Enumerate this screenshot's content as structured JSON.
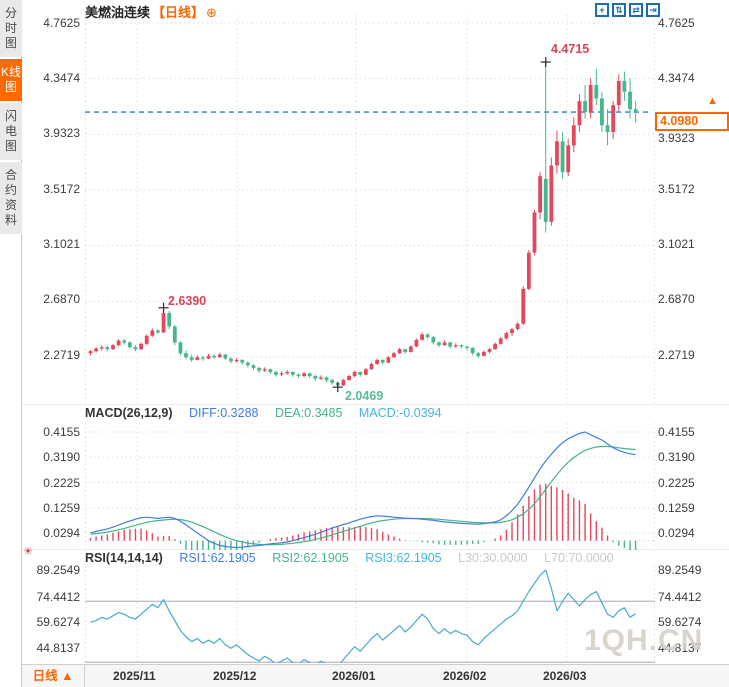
{
  "header": {
    "instrument": "美燃油连续",
    "period": "【日线】",
    "add_icon_glyph": "⊕"
  },
  "toolbar": {
    "icons": [
      {
        "name": "crosshair",
        "glyph": "+"
      },
      {
        "name": "zoom-in",
        "glyph": "⇅"
      },
      {
        "name": "zoom-out",
        "glyph": "⇄"
      },
      {
        "name": "goto-latest",
        "glyph": "⇥"
      }
    ]
  },
  "sidebar": {
    "items": [
      {
        "label": "分时图",
        "active": false
      },
      {
        "label": "K线图",
        "active": true
      },
      {
        "label": "闪电图",
        "active": false
      },
      {
        "label": "合约资料",
        "active": false
      }
    ]
  },
  "misc": {
    "sun_glyph": "☀"
  },
  "main_chart": {
    "y_axis": [
      "4.7625",
      "4.3474",
      "3.9323",
      "3.5172",
      "3.1021",
      "2.6870",
      "2.2719"
    ],
    "annotations": {
      "high_label": "4.4715",
      "swing_high_label": "2.6390",
      "swing_low_label": "2.0469",
      "last_price": "4.0980"
    },
    "price_arrow_glyph": "▲"
  },
  "macd": {
    "header": {
      "label": "MACD(26,12,9)",
      "diff": "DIFF:0.3288",
      "dea": "DEA:0.3485",
      "macd": "MACD:-0.0394"
    },
    "y_axis": [
      "0.4155",
      "0.3190",
      "0.2225",
      "0.1259",
      "0.0294"
    ]
  },
  "rsi": {
    "header": {
      "label": "RSI(14,14,14)",
      "rsi1": "RSI1:62.1905",
      "rsi2": "RSI2:62.1905",
      "rsi3": "RSI3:62.1905",
      "l30": "L30:30.0000",
      "l70": "L70:70.0000"
    },
    "y_axis": [
      "89.2549",
      "74.4412",
      "59.6274",
      "44.8137"
    ]
  },
  "bottom_bar": {
    "period": "日线",
    "period_arrow": "▲",
    "months": [
      "2025/11",
      "2025/12",
      "2026/01",
      "2026/02",
      "2026/03"
    ]
  },
  "watermark": {
    "text": "1QH.CN"
  },
  "colors": {
    "up": "#e4485c",
    "down": "#45b78a",
    "accent_orange": "#ff6600",
    "diff_blue": "#3f7de0",
    "dea_green": "#46b388",
    "macd_cyan": "#45b4e2",
    "rsi_cyan": "#46aacd",
    "dashed_blue": "#1f7fd6",
    "grid": "#dedede",
    "level_gray": "#a8a8b0",
    "marker": "#2a2a2a"
  },
  "chart_data": [
    {
      "type": "candlestick",
      "title": "美燃油连续 日线",
      "x_axis_months": [
        "2025/11",
        "2025/12",
        "2026/01",
        "2026/02",
        "2026/03"
      ],
      "y_axis_ticks": [
        4.7625,
        4.3474,
        3.9323,
        3.5172,
        3.1021,
        2.687,
        2.2719
      ],
      "last_price": 4.098,
      "period_high": 4.4715,
      "swing_high": 2.639,
      "swing_low": 2.0469,
      "markers": [
        {
          "index": 13,
          "price": 2.639,
          "label": "2.6390"
        },
        {
          "index": 44,
          "price": 2.0469,
          "label": "2.0469"
        },
        {
          "index": 81,
          "price": 4.4715,
          "label": "4.4715"
        }
      ],
      "ohlc": [
        [
          2.3,
          2.325,
          2.285,
          2.315
        ],
        [
          2.315,
          2.345,
          2.305,
          2.335
        ],
        [
          2.335,
          2.36,
          2.32,
          2.345
        ],
        [
          2.345,
          2.355,
          2.315,
          2.33
        ],
        [
          2.33,
          2.37,
          2.325,
          2.36
        ],
        [
          2.36,
          2.405,
          2.35,
          2.395
        ],
        [
          2.395,
          2.405,
          2.365,
          2.38
        ],
        [
          2.38,
          2.39,
          2.335,
          2.345
        ],
        [
          2.345,
          2.36,
          2.315,
          2.33
        ],
        [
          2.33,
          2.38,
          2.325,
          2.37
        ],
        [
          2.37,
          2.44,
          2.36,
          2.43
        ],
        [
          2.43,
          2.485,
          2.42,
          2.47
        ],
        [
          2.47,
          2.48,
          2.44,
          2.455
        ],
        [
          2.455,
          2.639,
          2.45,
          2.6
        ],
        [
          2.6,
          2.615,
          2.48,
          2.5
        ],
        [
          2.5,
          2.51,
          2.36,
          2.38
        ],
        [
          2.38,
          2.39,
          2.285,
          2.3
        ],
        [
          2.3,
          2.32,
          2.255,
          2.27
        ],
        [
          2.27,
          2.29,
          2.235,
          2.25
        ],
        [
          2.25,
          2.285,
          2.245,
          2.27
        ],
        [
          2.27,
          2.28,
          2.245,
          2.26
        ],
        [
          2.26,
          2.295,
          2.255,
          2.28
        ],
        [
          2.28,
          2.29,
          2.255,
          2.27
        ],
        [
          2.27,
          2.305,
          2.265,
          2.29
        ],
        [
          2.29,
          2.295,
          2.25,
          2.26
        ],
        [
          2.26,
          2.27,
          2.225,
          2.24
        ],
        [
          2.24,
          2.265,
          2.23,
          2.25
        ],
        [
          2.25,
          2.255,
          2.215,
          2.23
        ],
        [
          2.23,
          2.24,
          2.195,
          2.21
        ],
        [
          2.21,
          2.22,
          2.175,
          2.19
        ],
        [
          2.19,
          2.2,
          2.155,
          2.17
        ],
        [
          2.17,
          2.195,
          2.16,
          2.18
        ],
        [
          2.18,
          2.185,
          2.145,
          2.16
        ],
        [
          2.16,
          2.17,
          2.125,
          2.14
        ],
        [
          2.14,
          2.165,
          2.13,
          2.15
        ],
        [
          2.15,
          2.175,
          2.14,
          2.16
        ],
        [
          2.16,
          2.165,
          2.125,
          2.14
        ],
        [
          2.14,
          2.15,
          2.115,
          2.13
        ],
        [
          2.13,
          2.16,
          2.12,
          2.15
        ],
        [
          2.15,
          2.155,
          2.115,
          2.13
        ],
        [
          2.13,
          2.14,
          2.095,
          2.11
        ],
        [
          2.11,
          2.135,
          2.1,
          2.12
        ],
        [
          2.12,
          2.125,
          2.085,
          2.1
        ],
        [
          2.1,
          2.11,
          2.065,
          2.08
        ],
        [
          2.08,
          2.09,
          2.0469,
          2.06
        ],
        [
          2.06,
          2.11,
          2.055,
          2.1
        ],
        [
          2.1,
          2.14,
          2.095,
          2.13
        ],
        [
          2.13,
          2.17,
          2.12,
          2.16
        ],
        [
          2.16,
          2.165,
          2.125,
          2.14
        ],
        [
          2.14,
          2.19,
          2.135,
          2.18
        ],
        [
          2.18,
          2.23,
          2.175,
          2.22
        ],
        [
          2.22,
          2.26,
          2.215,
          2.25
        ],
        [
          2.25,
          2.255,
          2.215,
          2.23
        ],
        [
          2.23,
          2.28,
          2.225,
          2.27
        ],
        [
          2.27,
          2.31,
          2.265,
          2.3
        ],
        [
          2.3,
          2.34,
          2.295,
          2.33
        ],
        [
          2.33,
          2.335,
          2.295,
          2.31
        ],
        [
          2.31,
          2.36,
          2.305,
          2.35
        ],
        [
          2.35,
          2.41,
          2.345,
          2.4
        ],
        [
          2.4,
          2.455,
          2.395,
          2.44
        ],
        [
          2.44,
          2.45,
          2.405,
          2.42
        ],
        [
          2.42,
          2.43,
          2.365,
          2.38
        ],
        [
          2.38,
          2.39,
          2.345,
          2.36
        ],
        [
          2.36,
          2.395,
          2.355,
          2.38
        ],
        [
          2.38,
          2.385,
          2.335,
          2.35
        ],
        [
          2.35,
          2.375,
          2.34,
          2.36
        ],
        [
          2.36,
          2.365,
          2.335,
          2.35
        ],
        [
          2.35,
          2.355,
          2.32,
          2.34
        ],
        [
          2.34,
          2.345,
          2.285,
          2.3
        ],
        [
          2.3,
          2.31,
          2.265,
          2.28
        ],
        [
          2.28,
          2.32,
          2.275,
          2.31
        ],
        [
          2.31,
          2.34,
          2.3,
          2.33
        ],
        [
          2.33,
          2.38,
          2.325,
          2.37
        ],
        [
          2.37,
          2.42,
          2.365,
          2.41
        ],
        [
          2.41,
          2.46,
          2.4,
          2.45
        ],
        [
          2.45,
          2.49,
          2.43,
          2.48
        ],
        [
          2.48,
          2.53,
          2.47,
          2.52
        ],
        [
          2.52,
          2.8,
          2.51,
          2.78
        ],
        [
          2.78,
          3.07,
          2.77,
          3.05
        ],
        [
          3.05,
          3.37,
          3.03,
          3.35
        ],
        [
          3.35,
          3.65,
          3.3,
          3.62
        ],
        [
          3.6,
          4.4715,
          3.2,
          3.28
        ],
        [
          3.28,
          3.76,
          3.25,
          3.7
        ],
        [
          3.7,
          3.96,
          3.64,
          3.88
        ],
        [
          3.88,
          3.95,
          3.6,
          3.65
        ],
        [
          3.65,
          3.9,
          3.62,
          3.85
        ],
        [
          3.85,
          4.06,
          3.8,
          4.0
        ],
        [
          4.0,
          4.23,
          3.95,
          4.18
        ],
        [
          4.18,
          4.3,
          4.05,
          4.1
        ],
        [
          4.1,
          4.35,
          4.05,
          4.3
        ],
        [
          4.3,
          4.42,
          4.15,
          4.2
        ],
        [
          4.2,
          4.25,
          3.95,
          4.0
        ],
        [
          4.0,
          4.12,
          3.85,
          3.95
        ],
        [
          3.95,
          4.18,
          3.9,
          4.15
        ],
        [
          4.15,
          4.38,
          4.1,
          4.33
        ],
        [
          4.33,
          4.4,
          4.18,
          4.25
        ],
        [
          4.25,
          4.35,
          4.05,
          4.12
        ],
        [
          4.12,
          4.18,
          4.02,
          4.098
        ]
      ]
    },
    {
      "type": "line+bar",
      "title": "MACD(26,12,9)",
      "diff_last": 0.3288,
      "dea_last": 0.3485,
      "macd_last": -0.0394,
      "y_axis_ticks": [
        0.4155,
        0.319,
        0.2225,
        0.1259,
        0.0294
      ],
      "diff": [
        0.03,
        0.035,
        0.04,
        0.045,
        0.052,
        0.06,
        0.068,
        0.075,
        0.082,
        0.088,
        0.09,
        0.088,
        0.085,
        0.088,
        0.09,
        0.085,
        0.075,
        0.06,
        0.045,
        0.03,
        0.015,
        0.0,
        -0.01,
        -0.018,
        -0.022,
        -0.025,
        -0.026,
        -0.025,
        -0.022,
        -0.02,
        -0.018,
        -0.015,
        -0.012,
        -0.01,
        -0.008,
        -0.005,
        0.0,
        0.006,
        0.012,
        0.018,
        0.025,
        0.032,
        0.04,
        0.048,
        0.055,
        0.062,
        0.068,
        0.075,
        0.082,
        0.088,
        0.092,
        0.095,
        0.094,
        0.092,
        0.09,
        0.088,
        0.086,
        0.085,
        0.084,
        0.082,
        0.08,
        0.078,
        0.075,
        0.072,
        0.07,
        0.068,
        0.066,
        0.065,
        0.064,
        0.063,
        0.065,
        0.068,
        0.072,
        0.08,
        0.095,
        0.115,
        0.14,
        0.17,
        0.205,
        0.24,
        0.275,
        0.305,
        0.33,
        0.355,
        0.375,
        0.39,
        0.4,
        0.41,
        0.4155,
        0.405,
        0.395,
        0.385,
        0.37,
        0.355,
        0.345,
        0.338,
        0.332,
        0.3288
      ],
      "dea": [
        0.025,
        0.027,
        0.03,
        0.033,
        0.037,
        0.042,
        0.047,
        0.053,
        0.059,
        0.065,
        0.07,
        0.074,
        0.077,
        0.079,
        0.081,
        0.082,
        0.081,
        0.077,
        0.071,
        0.063,
        0.054,
        0.044,
        0.034,
        0.024,
        0.015,
        0.007,
        0.0,
        -0.005,
        -0.009,
        -0.012,
        -0.014,
        -0.015,
        -0.015,
        -0.015,
        -0.014,
        -0.012,
        -0.01,
        -0.007,
        -0.004,
        0.0,
        0.005,
        0.01,
        0.016,
        0.022,
        0.029,
        0.036,
        0.042,
        0.049,
        0.055,
        0.062,
        0.068,
        0.073,
        0.077,
        0.08,
        0.082,
        0.084,
        0.085,
        0.085,
        0.085,
        0.085,
        0.084,
        0.083,
        0.082,
        0.08,
        0.078,
        0.076,
        0.074,
        0.072,
        0.07,
        0.069,
        0.068,
        0.068,
        0.068,
        0.07,
        0.074,
        0.08,
        0.09,
        0.103,
        0.12,
        0.142,
        0.168,
        0.196,
        0.225,
        0.253,
        0.278,
        0.3,
        0.318,
        0.333,
        0.345,
        0.353,
        0.358,
        0.36,
        0.36,
        0.358,
        0.355,
        0.352,
        0.35,
        0.3485
      ]
    },
    {
      "type": "line",
      "title": "RSI(14,14,14)",
      "rsi_last": 62.1905,
      "levels": {
        "L30": 30.0,
        "L70": 70.0
      },
      "y_axis_ticks": [
        89.2549,
        74.4412,
        59.6274,
        44.8137
      ],
      "rsi": [
        57,
        58,
        60,
        59,
        61,
        63,
        62,
        60,
        59,
        62,
        65,
        68,
        66,
        71,
        64,
        58,
        52,
        48,
        45,
        47,
        44,
        46,
        44,
        47,
        43,
        41,
        43,
        40,
        37,
        35,
        33,
        36,
        34,
        31,
        33,
        35,
        32,
        31,
        34,
        32,
        30,
        33,
        31,
        29,
        28.5,
        34,
        38,
        42,
        39,
        43,
        47,
        50,
        46,
        49,
        52,
        55,
        51,
        54,
        58,
        62,
        59,
        53,
        50,
        53,
        50,
        52,
        50,
        49,
        45,
        43,
        47,
        50,
        53,
        56,
        59,
        61,
        64,
        70,
        76,
        81,
        86,
        89.2549,
        78,
        64,
        70,
        75,
        71,
        67,
        71,
        74,
        76,
        69,
        62,
        60,
        64,
        66,
        60,
        62.1905
      ]
    }
  ]
}
